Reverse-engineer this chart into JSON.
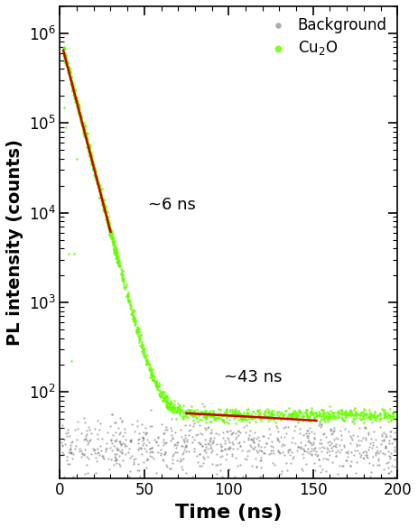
{
  "title": "",
  "xlabel": "Time (ns)",
  "ylabel": "PL intensity (counts)",
  "xlim": [
    0,
    200
  ],
  "ylim_log": [
    11,
    2000000
  ],
  "annotation_6ns": "~6 ns",
  "annotation_43ns": "~43 ns",
  "legend_label_bg": "Background",
  "legend_label_cu2o": "Cu$_2$O",
  "cu2o_color": "#66ff00",
  "bg_color_data": "#777777",
  "fit_color": "#cc0000",
  "tau1": 6.0,
  "A1": 900000,
  "noise_floor_cu2o": 55,
  "noise_floor_bg": 25,
  "fit1_t_start": 2.0,
  "fit1_t_end": 30.0,
  "fit2_t_start": 75.0,
  "fit2_t_end": 152.0,
  "fit2_y_start": 58.0,
  "fit2_y_end": 48.0
}
